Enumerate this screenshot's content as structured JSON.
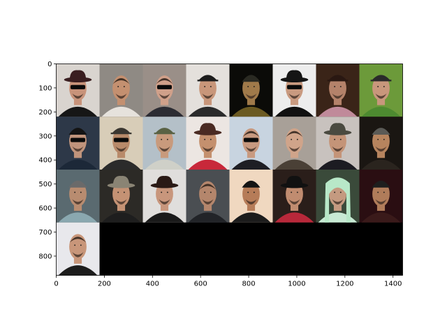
{
  "chart_data": {
    "type": "image-grid",
    "title": "",
    "xlabel": "",
    "ylabel": "",
    "xlim": [
      0,
      1440
    ],
    "ylim": [
      880,
      0
    ],
    "grid": false,
    "x_ticks": [
      {
        "value": 0,
        "label": "0"
      },
      {
        "value": 200,
        "label": "200"
      },
      {
        "value": 400,
        "label": "400"
      },
      {
        "value": 600,
        "label": "600"
      },
      {
        "value": 800,
        "label": "800"
      },
      {
        "value": 1000,
        "label": "1000"
      },
      {
        "value": 1200,
        "label": "1200"
      },
      {
        "value": 1400,
        "label": "1400"
      }
    ],
    "y_ticks": [
      {
        "value": 0,
        "label": "0"
      },
      {
        "value": 100,
        "label": "100"
      },
      {
        "value": 200,
        "label": "200"
      },
      {
        "value": 300,
        "label": "300"
      },
      {
        "value": 400,
        "label": "400"
      },
      {
        "value": 500,
        "label": "500"
      },
      {
        "value": 600,
        "label": "600"
      },
      {
        "value": 700,
        "label": "700"
      },
      {
        "value": 800,
        "label": "800"
      }
    ],
    "tile_width": 180,
    "tile_height": 220,
    "columns": 8,
    "rows": 4,
    "background_color": "#000000",
    "tiles": [
      {
        "col": 0,
        "row": 0,
        "bg": "#d9d4cf",
        "skin": "#c8937a",
        "hat": "#3a1e20",
        "hat_style": "fedora",
        "sunglasses": true,
        "shirt": "#161616"
      },
      {
        "col": 1,
        "row": 0,
        "bg": "#8f8a84",
        "skin": "#c49070",
        "hat": "",
        "hat_style": "none",
        "sunglasses": false,
        "shirt": "#e6e2dc"
      },
      {
        "col": 2,
        "row": 0,
        "bg": "#9a8f88",
        "skin": "#d0a08a",
        "hat": "",
        "hat_style": "none",
        "sunglasses": true,
        "shirt": "#2c2c33"
      },
      {
        "col": 3,
        "row": 0,
        "bg": "#e4e0dc",
        "skin": "#c8967a",
        "hat": "#1c1c1c",
        "hat_style": "cap",
        "sunglasses": false,
        "shirt": "#2b2b2b"
      },
      {
        "col": 4,
        "row": 0,
        "bg": "#0b0b08",
        "skin": "#a07a4a",
        "hat": "#2a2a22",
        "hat_style": "beanie",
        "sunglasses": false,
        "shirt": "#6b5a22"
      },
      {
        "col": 5,
        "row": 0,
        "bg": "#ededed",
        "skin": "#c99a80",
        "hat": "#151515",
        "hat_style": "fedora",
        "sunglasses": true,
        "shirt": "#111111"
      },
      {
        "col": 6,
        "row": 0,
        "bg": "#3a2418",
        "skin": "#b4826a",
        "hat": "#2a1812",
        "hat_style": "cap",
        "sunglasses": false,
        "shirt": "#c08a9a"
      },
      {
        "col": 7,
        "row": 0,
        "bg": "#6c9a3a",
        "skin": "#c8977c",
        "hat": "#2a2a2a",
        "hat_style": "cap",
        "sunglasses": false,
        "shirt": "#4d8a30"
      },
      {
        "col": 0,
        "row": 1,
        "bg": "#2d3848",
        "skin": "#c0947c",
        "hat": "#141414",
        "hat_style": "beanie",
        "sunglasses": true,
        "shirt": "#1c2838"
      },
      {
        "col": 1,
        "row": 1,
        "bg": "#d8cdb8",
        "skin": "#b88a6a",
        "hat": "#3a3630",
        "hat_style": "cap",
        "sunglasses": true,
        "shirt": "#2b2b2b"
      },
      {
        "col": 2,
        "row": 1,
        "bg": "#b4c0c8",
        "skin": "#c89a7c",
        "hat": "#5a6244",
        "hat_style": "cap",
        "sunglasses": false,
        "shirt": "#cfd0c8"
      },
      {
        "col": 3,
        "row": 1,
        "bg": "#ece6e2",
        "skin": "#c4906e",
        "hat": "#4a2a22",
        "hat_style": "fedora",
        "sunglasses": false,
        "shirt": "#c8283a"
      },
      {
        "col": 4,
        "row": 1,
        "bg": "#c8d4e0",
        "skin": "#c89a80",
        "hat": "",
        "hat_style": "none",
        "sunglasses": true,
        "shirt": "#1e1e24"
      },
      {
        "col": 5,
        "row": 1,
        "bg": "#a8a098",
        "skin": "#d0a48a",
        "hat": "",
        "hat_style": "none",
        "sunglasses": false,
        "shirt": "#4a4036"
      },
      {
        "col": 6,
        "row": 1,
        "bg": "#c8c2be",
        "skin": "#c49478",
        "hat": "#4a4a40",
        "hat_style": "fedora",
        "sunglasses": false,
        "shirt": "#1c1c22"
      },
      {
        "col": 7,
        "row": 1,
        "bg": "#1a1612",
        "skin": "#b6845e",
        "hat": "#5a5a56",
        "hat_style": "beanie",
        "sunglasses": false,
        "shirt": "#2a241e"
      },
      {
        "col": 0,
        "row": 2,
        "bg": "#5a6a70",
        "skin": "#b88c70",
        "hat": "#6a6a6a",
        "hat_style": "beanie",
        "sunglasses": false,
        "shirt": "#8aa8b0"
      },
      {
        "col": 1,
        "row": 2,
        "bg": "#2c2a26",
        "skin": "#c49274",
        "hat": "#8a8474",
        "hat_style": "fedora",
        "sunglasses": false,
        "shirt": "#1e1e1e"
      },
      {
        "col": 2,
        "row": 2,
        "bg": "#e0dedc",
        "skin": "#c8967c",
        "hat": "#2a1a16",
        "hat_style": "fedora",
        "sunglasses": false,
        "shirt": "#1a1a1a"
      },
      {
        "col": 3,
        "row": 2,
        "bg": "#4a4e52",
        "skin": "#b4866c",
        "hat": "",
        "hat_style": "none",
        "sunglasses": false,
        "shirt": "#222428"
      },
      {
        "col": 4,
        "row": 2,
        "bg": "#f0d8c0",
        "skin": "#b67c58",
        "hat": "#141414",
        "hat_style": "beanie",
        "sunglasses": false,
        "shirt": "#1c1c1c"
      },
      {
        "col": 5,
        "row": 2,
        "bg": "#2a1e1a",
        "skin": "#c08c70",
        "hat": "#111111",
        "hat_style": "fedora",
        "sunglasses": false,
        "shirt": "#b8283a"
      },
      {
        "col": 6,
        "row": 2,
        "bg": "#3a4a3a",
        "skin": "#c49a80",
        "hat": "#b8e8c8",
        "hat_style": "hood",
        "sunglasses": false,
        "shirt": "#c8ead4"
      },
      {
        "col": 7,
        "row": 2,
        "bg": "#2a0e12",
        "skin": "#b07c5a",
        "hat": "#1e1e1e",
        "hat_style": "beanie",
        "sunglasses": false,
        "shirt": "#3a1a1a"
      },
      {
        "col": 0,
        "row": 3,
        "bg": "#e8e8ec",
        "skin": "#c8967a",
        "hat": "",
        "hat_style": "none",
        "sunglasses": false,
        "shirt": "#1c1c1c"
      }
    ]
  }
}
